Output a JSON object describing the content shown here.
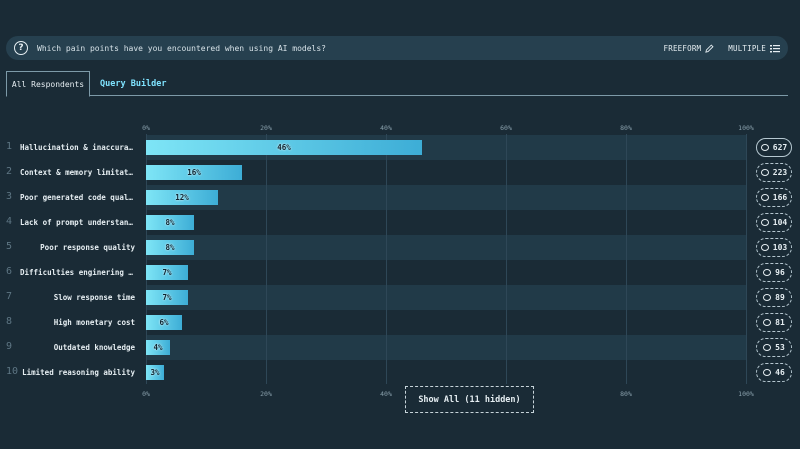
{
  "question": {
    "text": "Which pain points have you encountered when using AI models?",
    "freeform_label": "FREEFORM",
    "multiple_label": "MULTIPLE"
  },
  "tabs": {
    "all_respondents": "All Respondents",
    "query_builder": "Query Builder"
  },
  "show_all_label": "Show All (11 hidden)",
  "chart_data": {
    "type": "bar",
    "orientation": "horizontal",
    "axis": {
      "xlim": [
        0,
        100
      ],
      "ticks": [
        0,
        20,
        40,
        60,
        80,
        100
      ],
      "tick_labels": [
        "0%",
        "20%",
        "40%",
        "60%",
        "80%",
        "100%"
      ]
    },
    "rows": [
      {
        "rank": "1",
        "label": "Hallucination & inaccurac...",
        "value": 46,
        "value_label": "46%",
        "count": "627"
      },
      {
        "rank": "2",
        "label": "Context & memory limitati...",
        "value": 16,
        "value_label": "16%",
        "count": "223"
      },
      {
        "rank": "3",
        "label": "Poor generated code quali...",
        "value": 12,
        "value_label": "12%",
        "count": "166"
      },
      {
        "rank": "4",
        "label": "Lack of prompt understand...",
        "value": 8,
        "value_label": "8%",
        "count": "104"
      },
      {
        "rank": "5",
        "label": "Poor response quality",
        "value": 8,
        "value_label": "8%",
        "count": "103"
      },
      {
        "rank": "6",
        "label": "Difficulties enginering p...",
        "value": 7,
        "value_label": "7%",
        "count": "96"
      },
      {
        "rank": "7",
        "label": "Slow response time",
        "value": 7,
        "value_label": "7%",
        "count": "89"
      },
      {
        "rank": "8",
        "label": "High monetary cost",
        "value": 6,
        "value_label": "6%",
        "count": "81"
      },
      {
        "rank": "9",
        "label": "Outdated knowledge",
        "value": 4,
        "value_label": "4%",
        "count": "53"
      },
      {
        "rank": "10",
        "label": "Limited reasoning ability",
        "value": 3,
        "value_label": "3%",
        "count": "46"
      }
    ]
  }
}
